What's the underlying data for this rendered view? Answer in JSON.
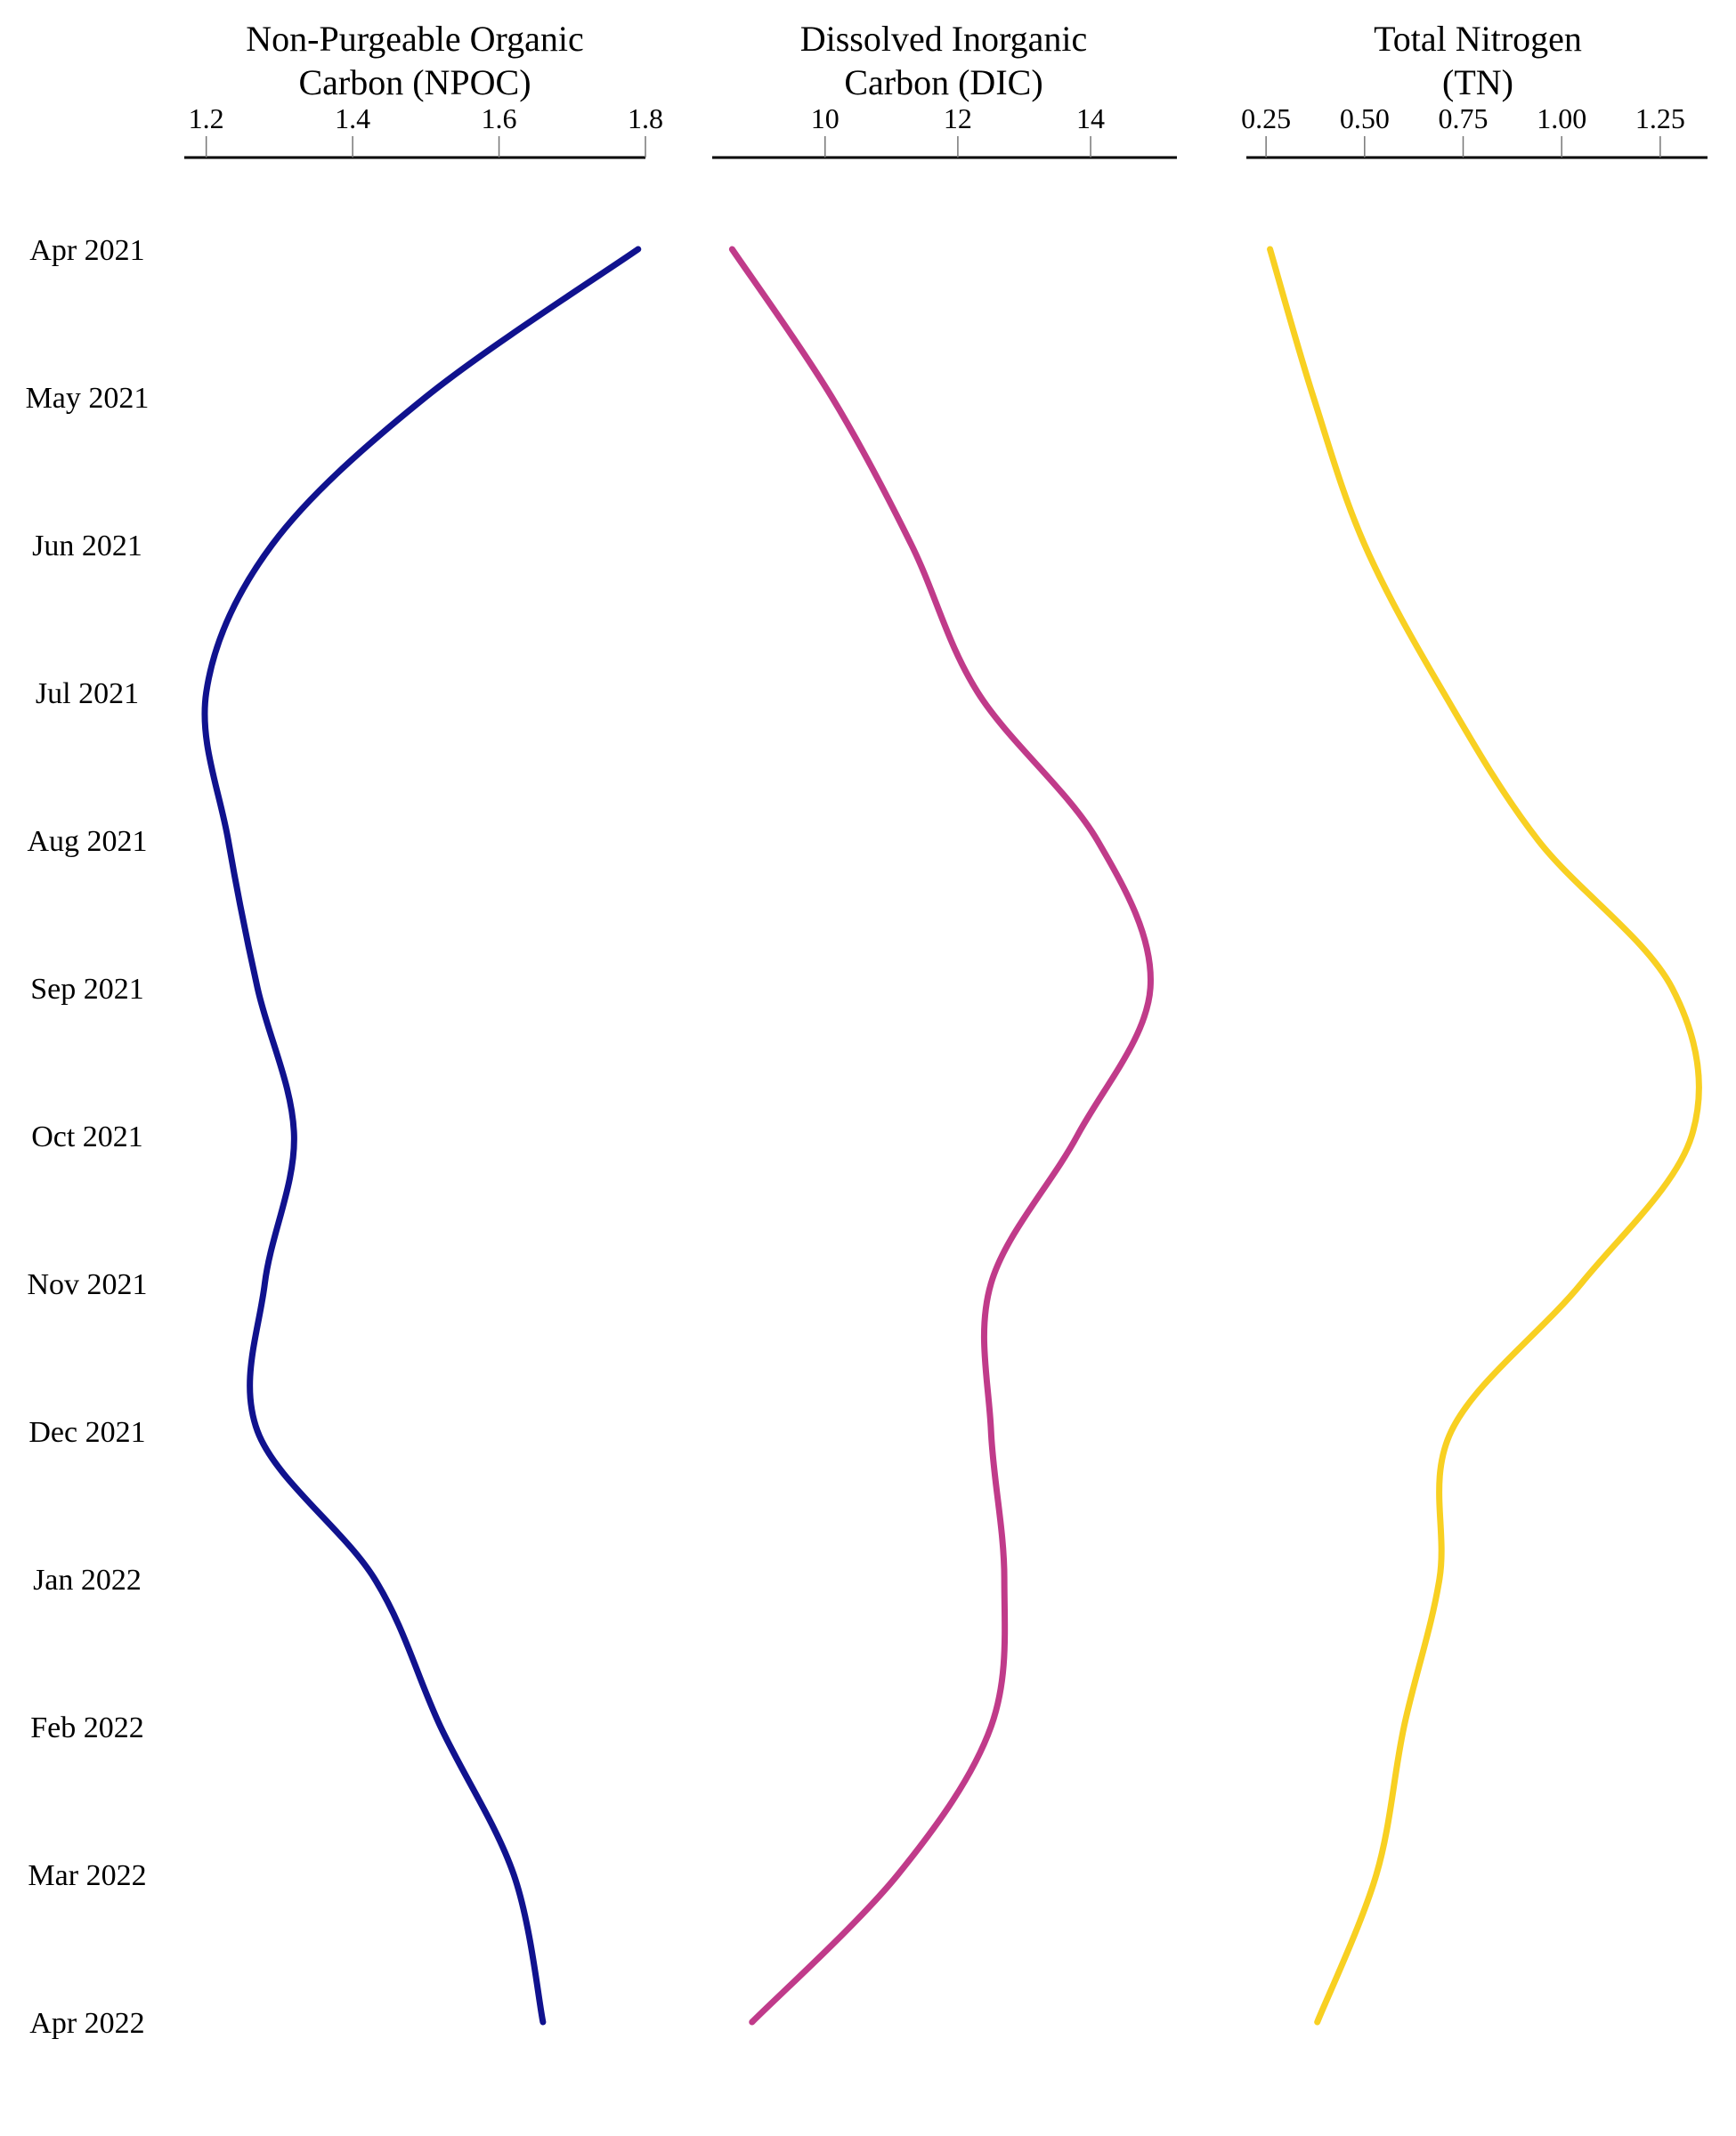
{
  "chart_data": {
    "type": "line",
    "orientation": "vertical-time",
    "grid": false,
    "legend": "none",
    "y_categories": [
      "Apr 2021",
      "May 2021",
      "Jun 2021",
      "Jul 2021",
      "Aug 2021",
      "Sep 2021",
      "Oct 2021",
      "Nov 2021",
      "Dec 2021",
      "Jan 2022",
      "Feb 2022",
      "Mar 2022",
      "Apr 2022"
    ],
    "panels": [
      {
        "title_lines": [
          "Non-Purgeable Organic",
          "Carbon (NPOC)"
        ],
        "xlim": [
          1.17,
          1.8
        ],
        "ticks": [
          1.2,
          1.4,
          1.6,
          1.8
        ],
        "tick_labels": [
          "1.2",
          "1.4",
          "1.6",
          "1.8"
        ],
        "color": "#10128e",
        "values": [
          1.79,
          1.5,
          1.29,
          1.2,
          1.23,
          1.27,
          1.32,
          1.28,
          1.27,
          1.43,
          1.52,
          1.62,
          1.66
        ]
      },
      {
        "title_lines": [
          "Dissolved Inorganic",
          "Carbon (DIC)"
        ],
        "xlim": [
          8.3,
          15.3
        ],
        "ticks": [
          10,
          12,
          14
        ],
        "tick_labels": [
          "10",
          "12",
          "14"
        ],
        "color": "#c03b8a",
        "values": [
          8.6,
          10.1,
          11.3,
          12.3,
          14.1,
          14.9,
          13.8,
          12.5,
          12.5,
          12.7,
          12.5,
          11.1,
          8.9
        ]
      },
      {
        "title_lines": [
          "Total Nitrogen",
          "(TN)"
        ],
        "xlim": [
          0.2,
          1.37
        ],
        "ticks": [
          0.25,
          0.5,
          0.75,
          1.0,
          1.25
        ],
        "tick_labels": [
          "0.25",
          "0.50",
          "0.75",
          "1.00",
          "1.25"
        ],
        "color": "#f8d022",
        "values": [
          0.26,
          0.37,
          0.5,
          0.7,
          0.94,
          1.28,
          1.33,
          1.05,
          0.72,
          0.69,
          0.6,
          0.53,
          0.38
        ]
      }
    ]
  }
}
